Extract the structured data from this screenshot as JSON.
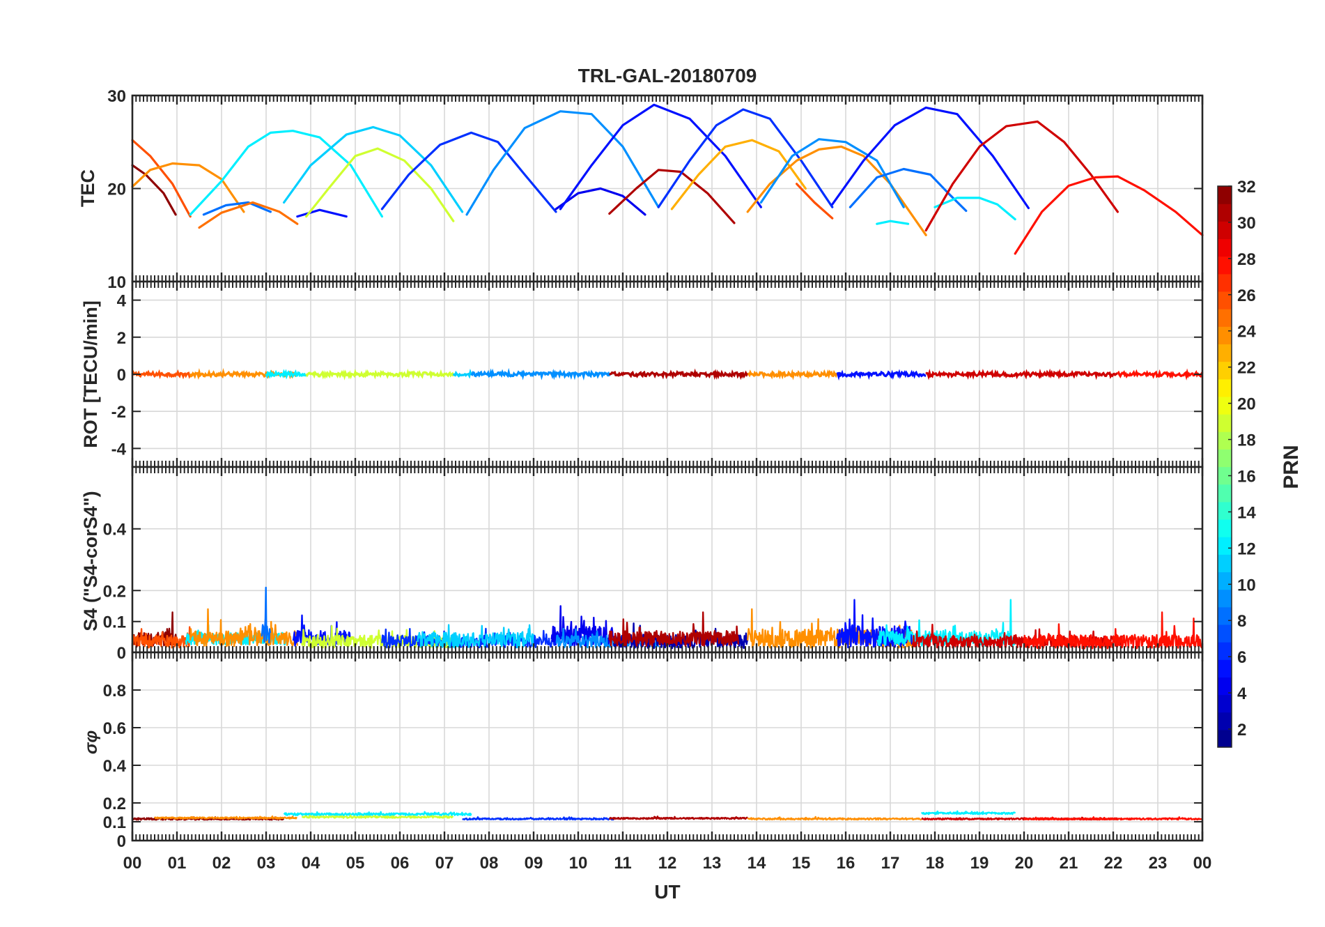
{
  "chart_data": {
    "type": "line",
    "title": "TRL-GAL-20180709",
    "x": {
      "label": "UT",
      "range": [
        0,
        24
      ],
      "tick_labels": [
        "00",
        "01",
        "02",
        "03",
        "04",
        "05",
        "06",
        "07",
        "08",
        "09",
        "10",
        "11",
        "12",
        "13",
        "14",
        "15",
        "16",
        "17",
        "18",
        "19",
        "20",
        "21",
        "22",
        "23",
        "00"
      ]
    },
    "colorbar": {
      "label": "PRN",
      "range": [
        1,
        32
      ],
      "ticks": [
        2,
        4,
        6,
        8,
        10,
        12,
        14,
        16,
        18,
        20,
        22,
        24,
        26,
        28,
        30,
        32
      ],
      "colormap": "jet"
    },
    "panels": [
      {
        "id": "tec",
        "ylabel": "TEC",
        "ylim": [
          10,
          30
        ],
        "yticks": [
          10,
          20,
          30
        ],
        "grid": true,
        "arcs": [
          {
            "prn": 32,
            "x": [
              0.0,
              0.3,
              0.7,
              0.97
            ],
            "y": [
              22.5,
              21.5,
              19.5,
              17.2
            ]
          },
          {
            "prn": 26,
            "x": [
              0.0,
              0.4,
              0.9,
              1.3
            ],
            "y": [
              25.2,
              23.5,
              20.5,
              17.0
            ]
          },
          {
            "prn": 24,
            "x": [
              0.0,
              0.4,
              0.9,
              1.5,
              2.0,
              2.5
            ],
            "y": [
              20.2,
              22.0,
              22.7,
              22.5,
              21.0,
              17.5
            ]
          },
          {
            "prn": 12,
            "x": [
              1.3,
              2.0,
              2.6,
              3.1,
              3.6,
              4.2,
              4.9,
              5.6
            ],
            "y": [
              17.2,
              20.8,
              24.5,
              26.0,
              26.2,
              25.5,
              22.5,
              17.0
            ]
          },
          {
            "prn": 8,
            "x": [
              1.6,
              2.1,
              2.6,
              3.1
            ],
            "y": [
              17.2,
              18.2,
              18.5,
              17.5
            ]
          },
          {
            "prn": 25,
            "x": [
              1.5,
              2.0,
              2.7,
              3.3,
              3.7
            ],
            "y": [
              15.8,
              17.4,
              18.5,
              17.5,
              16.2
            ]
          },
          {
            "prn": 5,
            "x": [
              3.7,
              4.2,
              4.8
            ],
            "y": [
              17.0,
              17.7,
              17.0
            ]
          },
          {
            "prn": 11,
            "x": [
              3.4,
              4.0,
              4.8,
              5.4,
              6.0,
              6.7,
              7.4
            ],
            "y": [
              18.5,
              22.5,
              25.8,
              26.6,
              25.7,
              22.5,
              17.5
            ]
          },
          {
            "prn": 19,
            "x": [
              3.9,
              4.4,
              5.0,
              5.5,
              6.1,
              6.7,
              7.2
            ],
            "y": [
              17.0,
              20.0,
              23.5,
              24.3,
              23.0,
              20.0,
              16.5
            ]
          },
          {
            "prn": 6,
            "x": [
              5.6,
              6.2,
              6.9,
              7.6,
              8.2,
              8.8,
              9.5
            ],
            "y": [
              17.8,
              21.5,
              24.7,
              26.0,
              25.0,
              21.5,
              17.5
            ]
          },
          {
            "prn": 9,
            "x": [
              7.5,
              8.1,
              8.8,
              9.6,
              10.3,
              11.0,
              11.8
            ],
            "y": [
              17.2,
              22.0,
              26.5,
              28.3,
              28.0,
              24.5,
              18.0
            ]
          },
          {
            "prn": 4,
            "x": [
              9.5,
              10.0,
              10.5,
              11.0,
              11.5
            ],
            "y": [
              17.8,
              19.5,
              20.0,
              19.2,
              17.2
            ]
          },
          {
            "prn": 5,
            "x": [
              9.6,
              10.3,
              11.0,
              11.7,
              12.5,
              13.3,
              14.1
            ],
            "y": [
              17.8,
              22.5,
              26.8,
              29.0,
              27.5,
              23.5,
              18.0
            ]
          },
          {
            "prn": 31,
            "x": [
              10.7,
              11.3,
              11.8,
              12.3,
              12.9,
              13.5
            ],
            "y": [
              17.3,
              20.0,
              22.0,
              21.8,
              19.5,
              16.3
            ]
          },
          {
            "prn": 6,
            "x": [
              11.8,
              12.5,
              13.1,
              13.7,
              14.3,
              15.0,
              15.7
            ],
            "y": [
              18.0,
              23.0,
              26.8,
              28.5,
              27.5,
              23.0,
              18.0
            ]
          },
          {
            "prn": 23,
            "x": [
              12.1,
              12.7,
              13.3,
              13.9,
              14.5,
              15.1
            ],
            "y": [
              17.8,
              21.5,
              24.5,
              25.2,
              24.0,
              20.0
            ]
          },
          {
            "prn": 24,
            "x": [
              13.8,
              14.3,
              14.9,
              15.4,
              15.9,
              16.4,
              17.0,
              17.8
            ],
            "y": [
              17.5,
              20.5,
              23.0,
              24.2,
              24.5,
              23.5,
              20.5,
              15.0
            ]
          },
          {
            "prn": 9,
            "x": [
              14.1,
              14.8,
              15.4,
              16.0,
              16.7,
              17.3
            ],
            "y": [
              18.5,
              23.5,
              25.3,
              25.0,
              23.0,
              18.0
            ]
          },
          {
            "prn": 26,
            "x": [
              14.9,
              15.3,
              15.7
            ],
            "y": [
              20.5,
              18.5,
              16.8
            ]
          },
          {
            "prn": 5,
            "x": [
              15.7,
              16.4,
              17.1,
              17.8,
              18.5,
              19.3,
              20.1
            ],
            "y": [
              18.3,
              23.0,
              26.8,
              28.7,
              28.0,
              23.5,
              17.9
            ]
          },
          {
            "prn": 8,
            "x": [
              16.1,
              16.7,
              17.3,
              17.9,
              18.3,
              18.7
            ],
            "y": [
              18.0,
              21.2,
              22.1,
              21.5,
              19.5,
              17.6
            ]
          },
          {
            "prn": 12,
            "x": [
              16.7,
              17.0,
              17.4
            ],
            "y": [
              16.2,
              16.5,
              16.2
            ]
          },
          {
            "prn": 12,
            "x": [
              18.0,
              18.5,
              19.0,
              19.4,
              19.8
            ],
            "y": [
              18.0,
              19.0,
              19.0,
              18.3,
              16.7
            ]
          },
          {
            "prn": 30,
            "x": [
              17.8,
              18.4,
              19.0,
              19.6,
              20.3,
              20.9,
              21.5,
              22.1
            ],
            "y": [
              15.5,
              20.5,
              24.5,
              26.7,
              27.2,
              25.0,
              21.5,
              17.5
            ]
          },
          {
            "prn": 28,
            "x": [
              19.8,
              20.4,
              21.0,
              21.6,
              22.1,
              22.7,
              23.4,
              24.0
            ],
            "y": [
              13.0,
              17.5,
              20.3,
              21.2,
              21.3,
              19.8,
              17.5,
              15.0
            ]
          }
        ]
      },
      {
        "id": "rot",
        "ylabel": "ROT [TECU/min]",
        "ylim": [
          -5,
          5
        ],
        "yticks": [
          -4,
          -2,
          0,
          2,
          4
        ],
        "grid": true,
        "segments": [
          {
            "prn": 26,
            "x0": 0.0,
            "x1": 1.3
          },
          {
            "prn": 24,
            "x0": 1.3,
            "x1": 3.7
          },
          {
            "prn": 12,
            "x0": 3.0,
            "x1": 3.9
          },
          {
            "prn": 19,
            "x0": 3.9,
            "x1": 7.2
          },
          {
            "prn": 11,
            "x0": 7.2,
            "x1": 7.6
          },
          {
            "prn": 9,
            "x0": 7.6,
            "x1": 10.7
          },
          {
            "prn": 31,
            "x0": 10.7,
            "x1": 13.8
          },
          {
            "prn": 24,
            "x0": 13.8,
            "x1": 15.8
          },
          {
            "prn": 5,
            "x0": 15.8,
            "x1": 17.8
          },
          {
            "prn": 30,
            "x0": 17.8,
            "x1": 22.1
          },
          {
            "prn": 28,
            "x0": 22.1,
            "x1": 24.0
          }
        ]
      },
      {
        "id": "s4",
        "ylabel": "S4 (\"S4-corS4\")",
        "ylim": [
          0,
          0.6
        ],
        "yticks": [
          0,
          0.1,
          0.2,
          0.4
        ],
        "grid": true,
        "noise": [
          {
            "prn": 32,
            "x0": 0.0,
            "x1": 1.0,
            "base": 0.04,
            "amp": 0.05,
            "spikes": [
              [
                0.9,
                0.13
              ]
            ]
          },
          {
            "prn": 26,
            "x0": 0.0,
            "x1": 1.3,
            "base": 0.035,
            "amp": 0.04
          },
          {
            "prn": 12,
            "x0": 1.2,
            "x1": 3.5,
            "base": 0.045,
            "amp": 0.04
          },
          {
            "prn": 24,
            "x0": 1.3,
            "x1": 3.7,
            "base": 0.045,
            "amp": 0.05,
            "spikes": [
              [
                1.7,
                0.14
              ]
            ]
          },
          {
            "prn": 8,
            "x0": 2.9,
            "x1": 3.1,
            "base": 0.06,
            "amp": 0.06,
            "spikes": [
              [
                3.0,
                0.21
              ]
            ]
          },
          {
            "prn": 5,
            "x0": 3.6,
            "x1": 4.9,
            "base": 0.045,
            "amp": 0.05,
            "spikes": [
              [
                3.8,
                0.12
              ]
            ]
          },
          {
            "prn": 19,
            "x0": 3.8,
            "x1": 7.2,
            "base": 0.035,
            "amp": 0.04
          },
          {
            "prn": 6,
            "x0": 5.6,
            "x1": 9.5,
            "base": 0.035,
            "amp": 0.04
          },
          {
            "prn": 11,
            "x0": 6.4,
            "x1": 9.0,
            "base": 0.04,
            "amp": 0.05
          },
          {
            "prn": 4,
            "x0": 9.4,
            "x1": 10.8,
            "base": 0.05,
            "amp": 0.07,
            "spikes": [
              [
                9.6,
                0.15
              ]
            ]
          },
          {
            "prn": 9,
            "x0": 9.5,
            "x1": 11.8,
            "base": 0.035,
            "amp": 0.04
          },
          {
            "prn": 2,
            "x0": 10.8,
            "x1": 13.8,
            "base": 0.035,
            "amp": 0.045
          },
          {
            "prn": 31,
            "x0": 10.7,
            "x1": 13.6,
            "base": 0.045,
            "amp": 0.05,
            "spikes": [
              [
                12.8,
                0.13
              ]
            ]
          },
          {
            "prn": 24,
            "x0": 13.8,
            "x1": 17.5,
            "base": 0.045,
            "amp": 0.06,
            "spikes": [
              [
                13.9,
                0.14
              ]
            ]
          },
          {
            "prn": 5,
            "x0": 15.8,
            "x1": 17.5,
            "base": 0.05,
            "amp": 0.07,
            "spikes": [
              [
                16.2,
                0.17
              ]
            ]
          },
          {
            "prn": 12,
            "x0": 16.7,
            "x1": 19.8,
            "base": 0.045,
            "amp": 0.05,
            "spikes": [
              [
                19.7,
                0.17
              ]
            ]
          },
          {
            "prn": 30,
            "x0": 17.5,
            "x1": 22.2,
            "base": 0.035,
            "amp": 0.04
          },
          {
            "prn": 28,
            "x0": 20.0,
            "x1": 24.0,
            "base": 0.035,
            "amp": 0.045,
            "spikes": [
              [
                23.1,
                0.13
              ],
              [
                23.8,
                0.11
              ]
            ]
          }
        ]
      },
      {
        "id": "sigma_phi",
        "ylabel": "σφ",
        "ylim": [
          0,
          1
        ],
        "yticks": [
          0,
          0.1,
          0.2,
          0.4,
          0.6,
          0.8
        ],
        "grid": true,
        "noise": [
          {
            "prn": 32,
            "x0": 0.0,
            "x1": 3.4,
            "base": 0.115,
            "amp": 0.01
          },
          {
            "prn": 24,
            "x0": 0.5,
            "x1": 3.7,
            "base": 0.12,
            "amp": 0.008
          },
          {
            "prn": 12,
            "x0": 3.4,
            "x1": 7.6,
            "base": 0.14,
            "amp": 0.012
          },
          {
            "prn": 19,
            "x0": 3.8,
            "x1": 7.2,
            "base": 0.125,
            "amp": 0.01
          },
          {
            "prn": 6,
            "x0": 7.4,
            "x1": 10.8,
            "base": 0.115,
            "amp": 0.008
          },
          {
            "prn": 31,
            "x0": 10.7,
            "x1": 13.8,
            "base": 0.118,
            "amp": 0.008
          },
          {
            "prn": 24,
            "x0": 13.8,
            "x1": 17.7,
            "base": 0.115,
            "amp": 0.008
          },
          {
            "prn": 12,
            "x0": 17.7,
            "x1": 19.8,
            "base": 0.145,
            "amp": 0.01
          },
          {
            "prn": 30,
            "x0": 17.7,
            "x1": 22.1,
            "base": 0.115,
            "amp": 0.008
          },
          {
            "prn": 28,
            "x0": 20.0,
            "x1": 24.0,
            "base": 0.115,
            "amp": 0.008
          }
        ]
      }
    ]
  }
}
